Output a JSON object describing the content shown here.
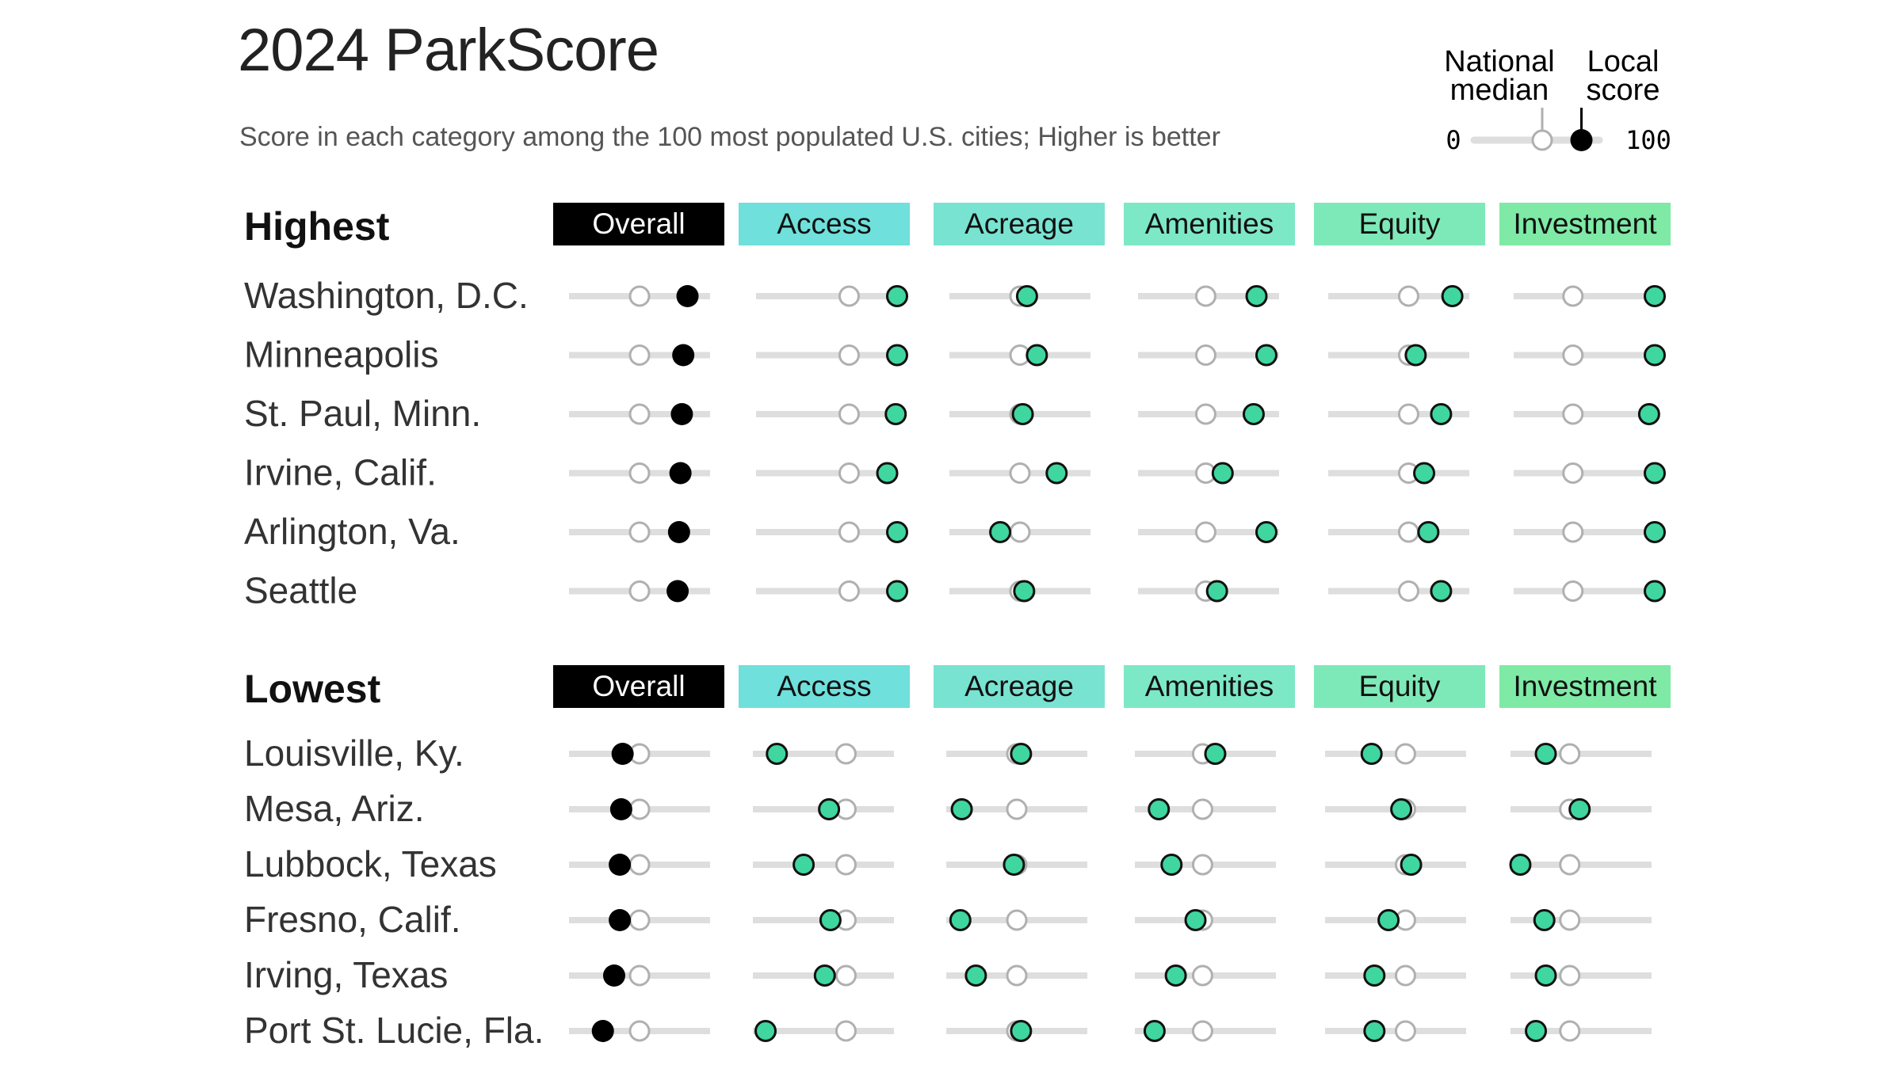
{
  "title": "2024 ParkScore",
  "subtitle": "Score in each category among the 100 most populated U.S. cities; Higher is better",
  "legend": {
    "median_label_line1": "National",
    "median_label_line2": "median",
    "local_label_line1": "Local",
    "local_label_line2": "score",
    "min_label": "0",
    "max_label": "100",
    "example_median": 52,
    "example_local": 85
  },
  "colors": {
    "Overall": "#000000",
    "Access": "#6fe0dc",
    "Acreage": "#79e3d2",
    "Amenities": "#7de8c6",
    "Equity": "#7ee9b8",
    "Investment": "#7eeaa5",
    "dot_fill": "#3fd6a0",
    "overall_dot": "#000000",
    "track": "#dedede",
    "median_dot_stroke": "#b0b0b0"
  },
  "chart_data": {
    "type": "dot-range",
    "categories": [
      "Overall",
      "Access",
      "Acreage",
      "Amenities",
      "Equity",
      "Investment"
    ],
    "national_median": {
      "Overall": 50,
      "Access": 66,
      "Acreage": 50,
      "Amenities": 48,
      "Equity": 57,
      "Investment": 42
    },
    "groups": [
      {
        "name": "Highest",
        "cities": [
          {
            "name": "Washington, D.C.",
            "scores": {
              "Overall": 84,
              "Access": 100,
              "Acreage": 55,
              "Amenities": 84,
              "Equity": 88,
              "Investment": 100
            }
          },
          {
            "name": "Minneapolis",
            "scores": {
              "Overall": 81,
              "Access": 100,
              "Acreage": 62,
              "Amenities": 91,
              "Equity": 62,
              "Investment": 100
            }
          },
          {
            "name": "St. Paul, Minn.",
            "scores": {
              "Overall": 80,
              "Access": 99,
              "Acreage": 52,
              "Amenities": 82,
              "Equity": 80,
              "Investment": 96
            }
          },
          {
            "name": "Irvine, Calif.",
            "scores": {
              "Overall": 79,
              "Access": 93,
              "Acreage": 76,
              "Amenities": 60,
              "Equity": 68,
              "Investment": 100
            }
          },
          {
            "name": "Arlington, Va.",
            "scores": {
              "Overall": 78,
              "Access": 100,
              "Acreage": 36,
              "Amenities": 91,
              "Equity": 71,
              "Investment": 100
            }
          },
          {
            "name": "Seattle",
            "scores": {
              "Overall": 77,
              "Access": 100,
              "Acreage": 53,
              "Amenities": 56,
              "Equity": 80,
              "Investment": 100
            }
          }
        ]
      },
      {
        "name": "Lowest",
        "cities": [
          {
            "name": "Louisville, Ky.",
            "scores": {
              "Overall": 38,
              "Access": 17,
              "Acreage": 53,
              "Amenities": 57,
              "Equity": 33,
              "Investment": 25
            }
          },
          {
            "name": "Mesa, Ariz.",
            "scores": {
              "Overall": 37,
              "Access": 54,
              "Acreage": 11,
              "Amenities": 17,
              "Equity": 54,
              "Investment": 49
            }
          },
          {
            "name": "Lubbock, Texas",
            "scores": {
              "Overall": 36,
              "Access": 36,
              "Acreage": 48,
              "Amenities": 26,
              "Equity": 61,
              "Investment": 7
            }
          },
          {
            "name": "Fresno, Calif.",
            "scores": {
              "Overall": 36,
              "Access": 55,
              "Acreage": 10,
              "Amenities": 43,
              "Equity": 45,
              "Investment": 24
            }
          },
          {
            "name": "Irving, Texas",
            "scores": {
              "Overall": 32,
              "Access": 51,
              "Acreage": 21,
              "Amenities": 29,
              "Equity": 35,
              "Investment": 25
            }
          },
          {
            "name": "Port St. Lucie, Fla.",
            "scores": {
              "Overall": 24,
              "Access": 9,
              "Acreage": 53,
              "Amenities": 14,
              "Equity": 35,
              "Investment": 18
            }
          }
        ]
      }
    ]
  }
}
